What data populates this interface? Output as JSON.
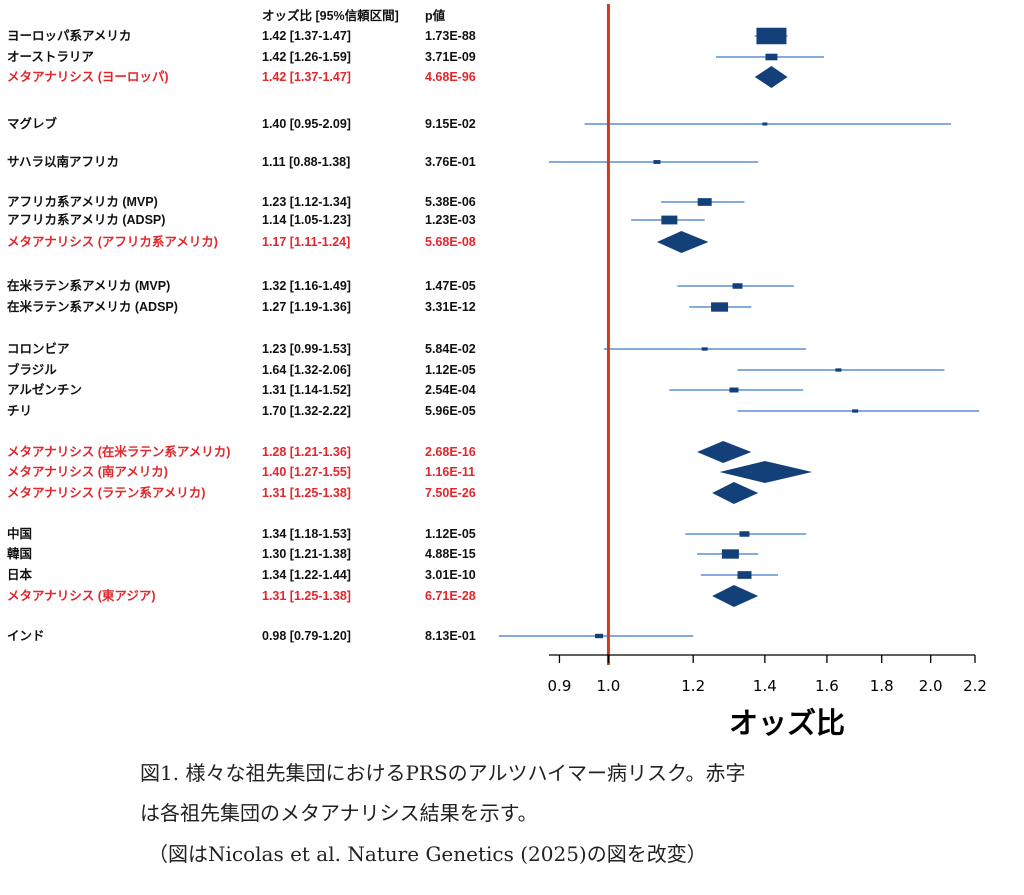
{
  "chart_data": {
    "type": "forest",
    "header": {
      "or_col": "オッズ比 [95%信頼区間]",
      "p_col": "p値"
    },
    "xlabel": "オッズ比",
    "x_scale": "log",
    "xlim": [
      0.88,
      2.2
    ],
    "xticks": [
      "0.9",
      "1.0",
      "1.2",
      "1.4",
      "1.6",
      "1.8",
      "2.0",
      "2.2"
    ],
    "reference_line": 1.0,
    "colors": {
      "reference_line": "#d23a1a",
      "ci_line": "#5b8fd6",
      "marker": "#14407a",
      "meta_text": "#e3262b",
      "text": "#111111"
    },
    "rows": [
      {
        "label": "ヨーロッパ系アメリカ",
        "or_text": "1.42 [1.37-1.47]",
        "p": "1.73E-88",
        "or": 1.42,
        "lo": 1.37,
        "hi": 1.47,
        "type": "study",
        "weight": 3
      },
      {
        "label": "オーストラリア",
        "or_text": "1.42 [1.26-1.59]",
        "p": "3.71E-09",
        "or": 1.42,
        "lo": 1.26,
        "hi": 1.59,
        "type": "study",
        "weight": 1.2
      },
      {
        "label": "メタアナリシス (ヨーロッパ)",
        "or_text": "1.42 [1.37-1.47]",
        "p": "4.68E-96",
        "or": 1.42,
        "lo": 1.37,
        "hi": 1.47,
        "type": "meta"
      },
      {
        "label": "マグレブ",
        "or_text": "1.40 [0.95-2.09]",
        "p": "9.15E-02",
        "or": 1.4,
        "lo": 0.95,
        "hi": 2.09,
        "type": "study",
        "weight": 0.5
      },
      {
        "label": "サハラ以南アフリカ",
        "or_text": "1.11 [0.88-1.38]",
        "p": "3.76E-01",
        "or": 1.11,
        "lo": 0.88,
        "hi": 1.38,
        "type": "study",
        "weight": 0.7
      },
      {
        "label": "アフリカ系アメリカ (MVP)",
        "or_text": "1.23 [1.12-1.34]",
        "p": "5.38E-06",
        "or": 1.23,
        "lo": 1.12,
        "hi": 1.34,
        "type": "study",
        "weight": 1.4
      },
      {
        "label": "アフリカ系アメリカ (ADSP)",
        "or_text": "1.14 [1.05-1.23]",
        "p": "1.23E-03",
        "or": 1.14,
        "lo": 1.05,
        "hi": 1.23,
        "type": "study",
        "weight": 1.6
      },
      {
        "label": "メタアナリシス (アフリカ系アメリカ)",
        "or_text": "1.17 [1.11-1.24]",
        "p": "5.68E-08",
        "or": 1.17,
        "lo": 1.11,
        "hi": 1.24,
        "type": "meta"
      },
      {
        "label": "在米ラテン系アメリカ (MVP)",
        "or_text": "1.32 [1.16-1.49]",
        "p": "1.47E-05",
        "or": 1.32,
        "lo": 1.16,
        "hi": 1.49,
        "type": "study",
        "weight": 1.0
      },
      {
        "label": "在米ラテン系アメリカ (ADSP)",
        "or_text": "1.27 [1.19-1.36]",
        "p": "3.31E-12",
        "or": 1.27,
        "lo": 1.19,
        "hi": 1.36,
        "type": "study",
        "weight": 1.7
      },
      {
        "label": "コロンビア",
        "or_text": "1.23 [0.99-1.53]",
        "p": "5.84E-02",
        "or": 1.23,
        "lo": 0.99,
        "hi": 1.53,
        "type": "study",
        "weight": 0.6
      },
      {
        "label": "ブラジル",
        "or_text": "1.64 [1.32-2.06]",
        "p": "1.12E-05",
        "or": 1.64,
        "lo": 1.32,
        "hi": 2.06,
        "type": "study",
        "weight": 0.6
      },
      {
        "label": "アルゼンチン",
        "or_text": "1.31 [1.14-1.52]",
        "p": "2.54E-04",
        "or": 1.31,
        "lo": 1.14,
        "hi": 1.52,
        "type": "study",
        "weight": 0.9
      },
      {
        "label": "チリ",
        "or_text": "1.70 [1.32-2.22]",
        "p": "5.96E-05",
        "or": 1.7,
        "lo": 1.32,
        "hi": 2.22,
        "type": "study",
        "weight": 0.6
      },
      {
        "label": "メタアナリシス (在米ラテン系アメリカ)",
        "or_text": "1.28 [1.21-1.36]",
        "p": "2.68E-16",
        "or": 1.28,
        "lo": 1.21,
        "hi": 1.36,
        "type": "meta"
      },
      {
        "label": "メタアナリシス (南アメリカ)",
        "or_text": "1.40 [1.27-1.55]",
        "p": "1.16E-11",
        "or": 1.4,
        "lo": 1.27,
        "hi": 1.55,
        "type": "meta"
      },
      {
        "label": "メタアナリシス (ラテン系アメリカ)",
        "or_text": "1.31 [1.25-1.38]",
        "p": "7.50E-26",
        "or": 1.31,
        "lo": 1.25,
        "hi": 1.38,
        "type": "meta"
      },
      {
        "label": "中国",
        "or_text": "1.34 [1.18-1.53]",
        "p": "1.12E-05",
        "or": 1.34,
        "lo": 1.18,
        "hi": 1.53,
        "type": "study",
        "weight": 1.0
      },
      {
        "label": "韓国",
        "or_text": "1.30 [1.21-1.38]",
        "p": "4.88E-15",
        "or": 1.3,
        "lo": 1.21,
        "hi": 1.38,
        "type": "study",
        "weight": 1.7
      },
      {
        "label": "日本",
        "or_text": "1.34 [1.22-1.44]",
        "p": "3.01E-10",
        "or": 1.34,
        "lo": 1.22,
        "hi": 1.44,
        "type": "study",
        "weight": 1.4
      },
      {
        "label": "メタアナリシス (東アジア)",
        "or_text": "1.31 [1.25-1.38]",
        "p": "6.71E-28",
        "or": 1.31,
        "lo": 1.25,
        "hi": 1.38,
        "type": "meta"
      },
      {
        "label": "インド",
        "or_text": "0.98 [0.79-1.20]",
        "p": "8.13E-01",
        "or": 0.98,
        "lo": 0.79,
        "hi": 1.2,
        "type": "study",
        "weight": 0.8
      }
    ]
  },
  "caption": {
    "line1": "図1. 様々な祖先集団におけるPRSのアルツハイマー病リスク。赤字",
    "line2": "は各祖先集団のメタアナリシス結果を示す。",
    "line3": "（図はNicolas et al. Nature Genetics (2025)の図を改変）"
  }
}
